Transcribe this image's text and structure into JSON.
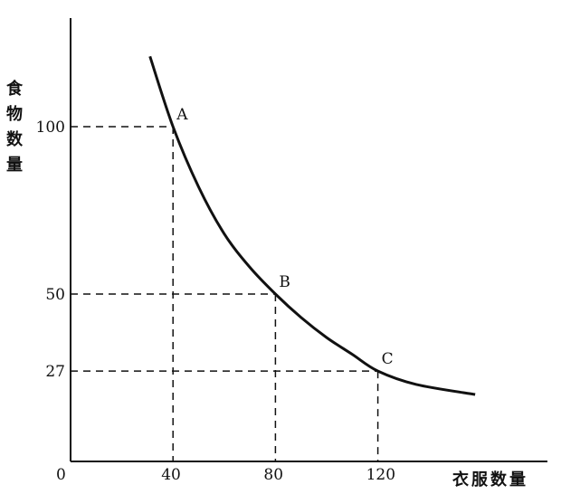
{
  "chart_data": {
    "type": "line",
    "title": "",
    "xlabel": "衣服数量",
    "ylabel": "食物数量",
    "origin_label": "0",
    "xlim": [
      0,
      186
    ],
    "ylim": [
      0,
      132
    ],
    "grid": false,
    "x_ticks": [
      "40",
      "80",
      "120"
    ],
    "y_ticks": [
      "100",
      "50",
      "27"
    ],
    "series": [
      {
        "x": [
          31,
          40,
          50,
          60,
          70,
          80,
          90,
          100,
          110,
          120,
          135,
          158
        ],
        "y": [
          121,
          100,
          82,
          68,
          58,
          50,
          43,
          37,
          32,
          27,
          23,
          20
        ]
      }
    ],
    "points": [
      {
        "label": "A",
        "x": 40,
        "y": 100
      },
      {
        "label": "B",
        "x": 80,
        "y": 50
      },
      {
        "label": "C",
        "x": 120,
        "y": 27
      }
    ],
    "colors": {
      "ink": "#111111"
    }
  }
}
